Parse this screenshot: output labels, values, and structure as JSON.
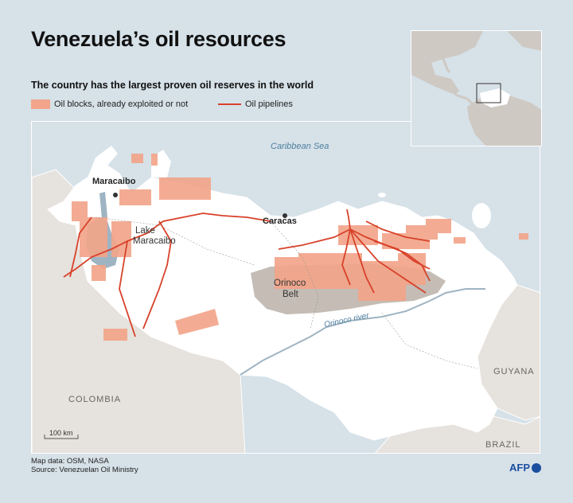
{
  "title": "Venezuela’s oil resources",
  "subtitle": "The country has the largest proven oil reserves in the world",
  "legend": {
    "oil_blocks": "Oil blocks, already exploited or not",
    "pipelines": "Oil pipelines"
  },
  "labels": {
    "sea": "Caribbean Sea",
    "maracaibo": "Maracaibo",
    "lake_line1": "Lake",
    "lake_line2": "Maracaibo",
    "caracas": "Caracas",
    "orinoco_line1": "Orinoco",
    "orinoco_line2": "Belt",
    "river": "Orinoco river",
    "colombia": "COLOMBIA",
    "guyana": "GUYANA",
    "brazil": "BRAZIL",
    "scale": "100 km"
  },
  "footer": {
    "line1": "Map data: OSM, NASA",
    "line2": "Source: Venezuelan Oil Ministry"
  },
  "logo": "AFP",
  "colors": {
    "oil_blocks": "#f2a58a",
    "pipelines": "#d8412a",
    "sea": "#d6e1e8",
    "venezuela": "#ffffff",
    "neighbors": "#e6e2dd",
    "orinoco_belt": "#c4bcb5"
  }
}
